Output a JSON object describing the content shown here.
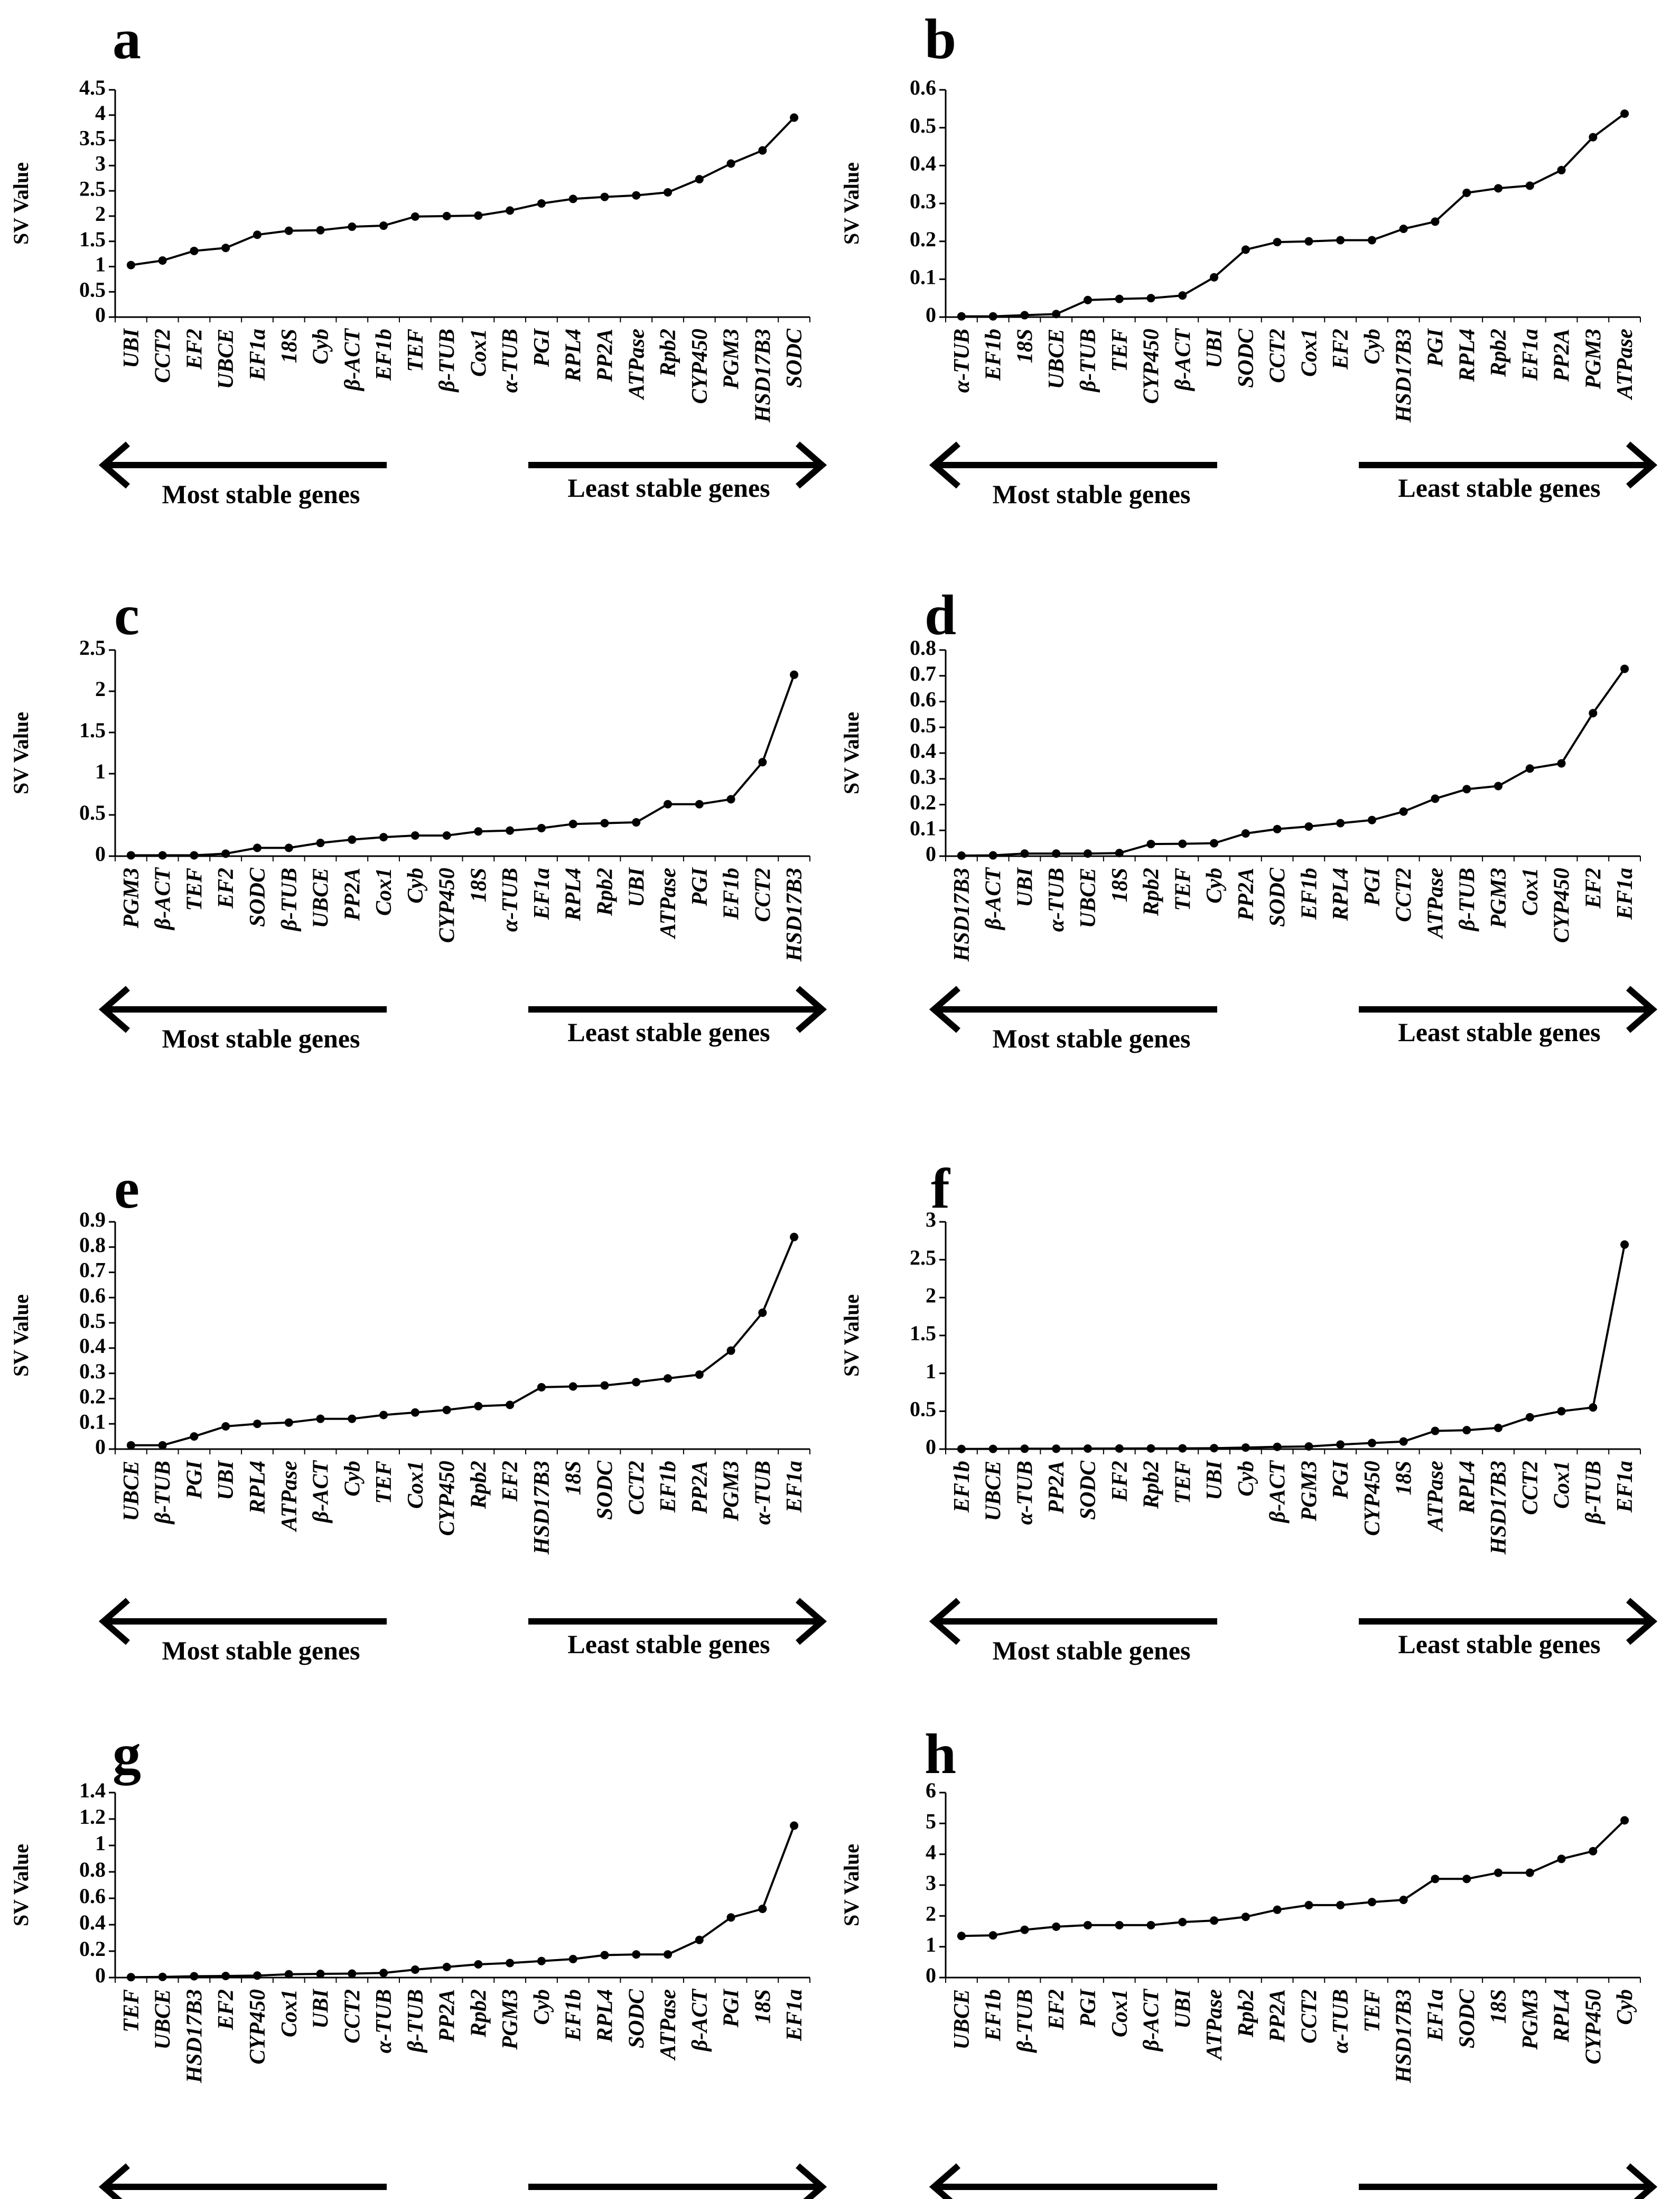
{
  "legend": {
    "most_stable": "Most stable genes",
    "least_stable": "Least stable genes"
  },
  "colors": {
    "line": "#000000",
    "background": "#ffffff"
  },
  "chart_data": [
    {
      "type": "line",
      "panel": "a",
      "ylabel": "SV Value",
      "ylim": [
        0,
        4.5
      ],
      "yticks": [
        "0",
        "0.5",
        "1",
        "1.5",
        "2",
        "2.5",
        "3",
        "3.5",
        "4",
        "4.5"
      ],
      "categories": [
        "UBI",
        "CCT2",
        "EF2",
        "UBCE",
        "EF1a",
        "18S",
        "Cyb",
        "β-ACT",
        "EF1b",
        "TEF",
        "β-TUB",
        "Cox1",
        "α-TUB",
        "PGI",
        "RPL4",
        "PP2A",
        "ATPase",
        "Rpb2",
        "CYP450",
        "PGM3",
        "HSD17B3",
        "SODC"
      ],
      "values": [
        1.03,
        1.12,
        1.31,
        1.37,
        1.63,
        1.71,
        1.72,
        1.79,
        1.81,
        1.99,
        2.0,
        2.01,
        2.11,
        2.25,
        2.34,
        2.38,
        2.41,
        2.47,
        2.73,
        3.04,
        3.3,
        3.95
      ]
    },
    {
      "type": "line",
      "panel": "b",
      "ylabel": "SV Value",
      "ylim": [
        0,
        0.6
      ],
      "yticks": [
        "0",
        "0.1",
        "0.2",
        "0.3",
        "0.4",
        "0.5",
        "0.6"
      ],
      "categories": [
        "α-TUB",
        "EF1b",
        "18S",
        "UBCE",
        "β-TUB",
        "TEF",
        "CYP450",
        "β-ACT",
        "UBI",
        "SODC",
        "CCT2",
        "Cox1",
        "EF2",
        "Cyb",
        "HSD17B3",
        "PGI",
        "RPL4",
        "Rpb2",
        "EF1a",
        "PP2A",
        "PGM3",
        "ATPase"
      ],
      "values": [
        0.002,
        0.002,
        0.005,
        0.008,
        0.045,
        0.048,
        0.05,
        0.057,
        0.105,
        0.178,
        0.198,
        0.2,
        0.203,
        0.203,
        0.233,
        0.252,
        0.328,
        0.34,
        0.347,
        0.388,
        0.475,
        0.537
      ]
    },
    {
      "type": "line",
      "panel": "c",
      "ylabel": "SV Value",
      "ylim": [
        0,
        2.5
      ],
      "yticks": [
        "0",
        "0.5",
        "1",
        "1.5",
        "2",
        "2.5"
      ],
      "categories": [
        "PGM3",
        "β-ACT",
        "TEF",
        "EF2",
        "SODC",
        "β-TUB",
        "UBCE",
        "PP2A",
        "Cox1",
        "Cyb",
        "CYP450",
        "18S",
        "α-TUB",
        "EF1a",
        "RPL4",
        "Rpb2",
        "UBI",
        "ATPase",
        "PGI",
        "EF1b",
        "CCT2",
        "HSD17B3"
      ],
      "values": [
        0.01,
        0.01,
        0.01,
        0.03,
        0.1,
        0.1,
        0.16,
        0.2,
        0.23,
        0.25,
        0.25,
        0.3,
        0.31,
        0.34,
        0.39,
        0.4,
        0.41,
        0.63,
        0.63,
        0.69,
        1.14,
        2.2
      ]
    },
    {
      "type": "line",
      "panel": "d",
      "ylabel": "SV Value",
      "ylim": [
        0,
        0.8
      ],
      "yticks": [
        "0",
        "0.1",
        "0.2",
        "0.3",
        "0.4",
        "0.5",
        "0.6",
        "0.7",
        "0.8"
      ],
      "categories": [
        "HSD17B3",
        "β-ACT",
        "UBI",
        "α-TUB",
        "UBCE",
        "18S",
        "Rpb2",
        "TEF",
        "Cyb",
        "PP2A",
        "SODC",
        "EF1b",
        "RPL4",
        "PGI",
        "CCT2",
        "ATPase",
        "β-TUB",
        "PGM3",
        "Cox1",
        "CYP450",
        "EF2",
        "EF1a"
      ],
      "values": [
        0.002,
        0.003,
        0.01,
        0.01,
        0.01,
        0.012,
        0.047,
        0.048,
        0.05,
        0.088,
        0.105,
        0.115,
        0.128,
        0.14,
        0.173,
        0.223,
        0.26,
        0.272,
        0.34,
        0.36,
        0.555,
        0.727
      ]
    },
    {
      "type": "line",
      "panel": "e",
      "ylabel": "SV Value",
      "ylim": [
        0,
        0.9
      ],
      "yticks": [
        "0",
        "0.1",
        "0.2",
        "0.3",
        "0.4",
        "0.5",
        "0.6",
        "0.7",
        "0.8",
        "0.9"
      ],
      "categories": [
        "UBCE",
        "β-TUB",
        "PGI",
        "UBI",
        "RPL4",
        "ATPase",
        "β-ACT",
        "Cyb",
        "TEF",
        "Cox1",
        "CYP450",
        "Rpb2",
        "EF2",
        "HSD17B3",
        "18S",
        "SODC",
        "CCT2",
        "EF1b",
        "PP2A",
        "PGM3",
        "α-TUB",
        "EF1a"
      ],
      "values": [
        0.015,
        0.015,
        0.05,
        0.09,
        0.1,
        0.105,
        0.12,
        0.12,
        0.135,
        0.145,
        0.155,
        0.17,
        0.175,
        0.245,
        0.248,
        0.252,
        0.265,
        0.28,
        0.295,
        0.39,
        0.54,
        0.84
      ]
    },
    {
      "type": "line",
      "panel": "f",
      "ylabel": "SV Value",
      "ylim": [
        0,
        3
      ],
      "yticks": [
        "0",
        "0.5",
        "1",
        "1.5",
        "2",
        "2.5",
        "3"
      ],
      "categories": [
        "EF1b",
        "UBCE",
        "α-TUB",
        "PP2A",
        "SODC",
        "EF2",
        "Rpb2",
        "TEF",
        "UBI",
        "Cyb",
        "β-ACT",
        "PGM3",
        "PGI",
        "CYP450",
        "18S",
        "ATPase",
        "RPL4",
        "HSD17B3",
        "CCT2",
        "Cox1",
        "β-TUB",
        "EF1a"
      ],
      "values": [
        0.002,
        0.003,
        0.005,
        0.005,
        0.007,
        0.008,
        0.009,
        0.01,
        0.012,
        0.02,
        0.03,
        0.035,
        0.06,
        0.08,
        0.1,
        0.24,
        0.25,
        0.28,
        0.42,
        0.5,
        0.55,
        2.7
      ]
    },
    {
      "type": "line",
      "panel": "g",
      "ylabel": "SV Value",
      "ylim": [
        0,
        1.4
      ],
      "yticks": [
        "0",
        "0.2",
        "0.4",
        "0.6",
        "0.8",
        "1",
        "1.2",
        "1.4"
      ],
      "categories": [
        "TEF",
        "UBCE",
        "HSD17B3",
        "EF2",
        "CYP450",
        "Cox1",
        "UBI",
        "CCT2",
        "α-TUB",
        "β-TUB",
        "PP2A",
        "Rpb2",
        "PGM3",
        "Cyb",
        "EF1b",
        "RPL4",
        "SODC",
        "ATPase",
        "β-ACT",
        "PGI",
        "18S",
        "EF1a"
      ],
      "values": [
        0.003,
        0.005,
        0.01,
        0.012,
        0.015,
        0.025,
        0.028,
        0.03,
        0.035,
        0.06,
        0.08,
        0.1,
        0.11,
        0.125,
        0.14,
        0.17,
        0.175,
        0.175,
        0.285,
        0.455,
        0.52,
        1.15
      ]
    },
    {
      "type": "line",
      "panel": "h",
      "ylabel": "SV Value",
      "ylim": [
        0,
        6
      ],
      "yticks": [
        "0",
        "1",
        "2",
        "3",
        "4",
        "5",
        "6"
      ],
      "categories": [
        "UBCE",
        "EF1b",
        "β-TUB",
        "EF2",
        "PGI",
        "Cox1",
        "β-ACT",
        "UBI",
        "ATPase",
        "Rpb2",
        "PP2A",
        "CCT2",
        "α-TUB",
        "TEF",
        "HSD17B3",
        "EF1a",
        "SODC",
        "18S",
        "PGM3",
        "RPL4",
        "CYP450",
        "Cyb"
      ],
      "values": [
        1.35,
        1.37,
        1.55,
        1.65,
        1.7,
        1.7,
        1.7,
        1.8,
        1.85,
        1.97,
        2.2,
        2.35,
        2.35,
        2.45,
        2.52,
        3.2,
        3.2,
        3.4,
        3.4,
        3.85,
        4.1,
        5.1
      ]
    }
  ]
}
